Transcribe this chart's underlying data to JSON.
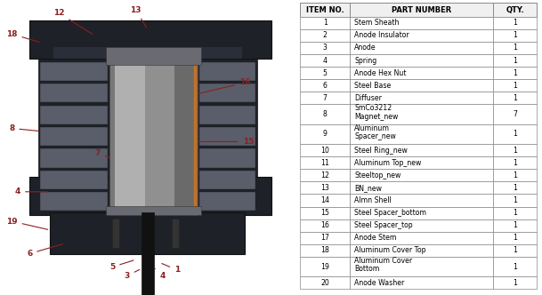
{
  "table_headers": [
    "ITEM NO.",
    "PART NUMBER",
    "QTY."
  ],
  "table_data": [
    [
      "1",
      "Stem Sheath",
      "1"
    ],
    [
      "2",
      "Anode Insulator",
      "1"
    ],
    [
      "3",
      "Anode",
      "1"
    ],
    [
      "4",
      "Spring",
      "1"
    ],
    [
      "5",
      "Anode Hex Nut",
      "1"
    ],
    [
      "6",
      "Steel Base",
      "1"
    ],
    [
      "7",
      "Diffuser",
      "1"
    ],
    [
      "8",
      "SmCo3212\nMagnet_new",
      "7"
    ],
    [
      "9",
      "Aluminum\nSpacer_new",
      "1"
    ],
    [
      "10",
      "Steel Ring_new",
      "1"
    ],
    [
      "11",
      "Aluminum Top_new",
      "1"
    ],
    [
      "12",
      "Steeltop_new",
      "1"
    ],
    [
      "13",
      "BN_new",
      "1"
    ],
    [
      "14",
      "Almn Shell",
      "1"
    ],
    [
      "15",
      "Steel Spacer_bottom",
      "1"
    ],
    [
      "16",
      "Steel Spacer_top",
      "1"
    ],
    [
      "17",
      "Anode Stem",
      "1"
    ],
    [
      "18",
      "Aluminum Cover Top",
      "1"
    ],
    [
      "19",
      "Aluminum Cover\nBottom",
      "1"
    ],
    [
      "20",
      "Anode Washer",
      "1"
    ]
  ],
  "label_color": "#8B2020",
  "table_line_color": "#888888",
  "bg_color": "#ffffff",
  "cad_bg": "#ffffff",
  "dark": "#1e2128",
  "mid_gray": "#4a4e58",
  "slot_color": "#5a5e6a",
  "inner_cyl_light": "#a0a0a0",
  "inner_cyl_dark": "#6a6a6a",
  "orange_line": "#c87020",
  "stem_color": "#111111",
  "connector_color": "#333333"
}
